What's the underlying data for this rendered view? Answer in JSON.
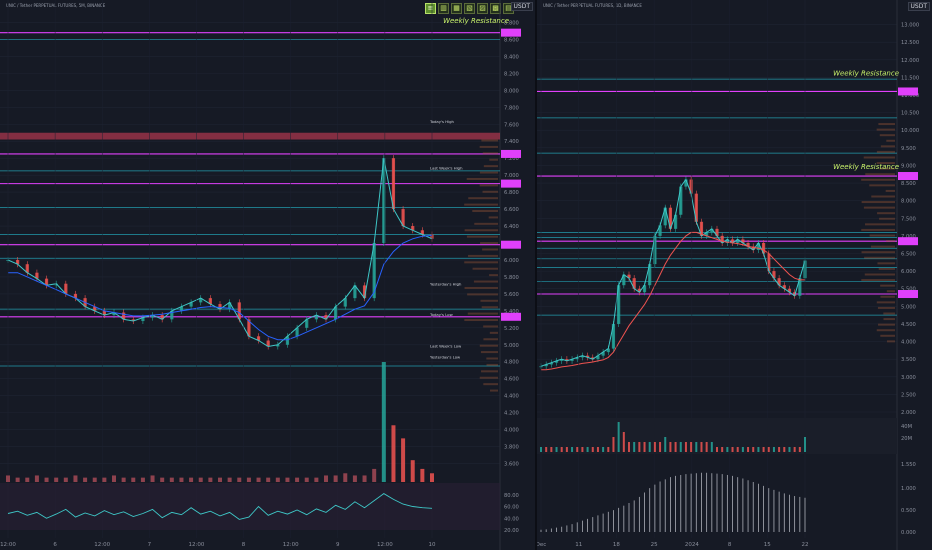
{
  "left_chart": {
    "header": "UNIC / Tether PERPETUAL FUTURES, 5M, BINANCE",
    "currency": "USDT",
    "toolbar": [
      "≡",
      "▥",
      "▦",
      "▧",
      "▨",
      "▩",
      "▤"
    ],
    "weekly_resistance": "Weekly Resistance",
    "annotations": [
      "Today's High",
      "Last Week's High",
      "Yesterday's High",
      "Today's Low",
      "Last Week's Low",
      "Yesterday's Low"
    ]
  },
  "right_chart": {
    "header": "UNIC / Tether PERPETUAL FUTURES, 1D, BINANCE",
    "currency": "USDT",
    "weekly_resistance_1": "Weekly Resistance",
    "weekly_resistance_2": "Weekly Resistance"
  },
  "chart_data": [
    {
      "type": "line",
      "title": "",
      "x_ticks": [
        "12:00",
        "6",
        "12:00",
        "7",
        "12:00",
        "8",
        "12:00",
        "9",
        "12:00",
        "10"
      ],
      "y_ticks": [
        8.8,
        8.6,
        8.4,
        8.2,
        8.0,
        7.8,
        7.6,
        7.4,
        7.2,
        7.0,
        6.8,
        6.6,
        6.4,
        6.2,
        6.0,
        5.8,
        5.6,
        5.4,
        5.2,
        5.0,
        4.8,
        4.6,
        4.4,
        4.2,
        4.0,
        3.8,
        3.6
      ],
      "ylim": [
        3.5,
        8.9
      ],
      "price_labels": [
        "8.800",
        "8.600",
        "8.400",
        "8.200",
        "8.000",
        "7.800",
        "7.600",
        "7.400",
        "7.200",
        "7.000",
        "6.800",
        "6.600",
        "6.400",
        "6.200",
        "6.000",
        "5.800",
        "5.600",
        "5.400",
        "5.200",
        "5.000",
        "4.800",
        "4.600",
        "4.400",
        "4.200",
        "4.000",
        "3.800",
        "3.600"
      ],
      "horizontal_levels": {
        "magenta": [
          8.68,
          7.25,
          6.9,
          6.18,
          5.33
        ],
        "teal": [
          8.6,
          7.05,
          6.62,
          6.3,
          6.02,
          5.42,
          4.75
        ],
        "red_band": [
          7.42,
          7.5
        ]
      },
      "series": [
        {
          "values": [
            6.0,
            5.95,
            5.85,
            5.78,
            5.7,
            5.72,
            5.6,
            5.55,
            5.45,
            5.4,
            5.35,
            5.38,
            5.3,
            5.28,
            5.32,
            5.35,
            5.3,
            5.4,
            5.45,
            5.5,
            5.55,
            5.48,
            5.42,
            5.5,
            5.3,
            5.1,
            5.05,
            4.98,
            5.0,
            5.1,
            5.2,
            5.3,
            5.35,
            5.3,
            5.45,
            5.55,
            5.7,
            5.55,
            6.2,
            7.2,
            6.6,
            6.4,
            6.35,
            6.3,
            6.25
          ]
        },
        {
          "values": [
            5.85,
            5.85,
            5.8,
            5.75,
            5.7,
            5.65,
            5.6,
            5.55,
            5.5,
            5.45,
            5.4,
            5.38,
            5.36,
            5.34,
            5.34,
            5.35,
            5.36,
            5.38,
            5.4,
            5.42,
            5.44,
            5.45,
            5.44,
            5.43,
            5.38,
            5.28,
            5.18,
            5.1,
            5.06,
            5.06,
            5.1,
            5.15,
            5.2,
            5.25,
            5.3,
            5.36,
            5.42,
            5.46,
            5.62,
            5.95,
            6.1,
            6.2,
            6.25,
            6.28,
            6.29
          ]
        }
      ],
      "volume": [
        3,
        2,
        2,
        3,
        2,
        2,
        2,
        3,
        2,
        2,
        2,
        3,
        2,
        2,
        2,
        3,
        2,
        2,
        2,
        2,
        2,
        2,
        2,
        2,
        2,
        2,
        2,
        2,
        2,
        2,
        2,
        2,
        2,
        3,
        3,
        4,
        3,
        3,
        6,
        55,
        26,
        20,
        10,
        6,
        4
      ],
      "oscillator_ticks": [
        "80.00",
        "60.00",
        "40.00",
        "20.00"
      ],
      "oscillator": [
        48,
        52,
        45,
        50,
        40,
        47,
        55,
        42,
        49,
        44,
        53,
        46,
        51,
        43,
        48,
        55,
        41,
        50,
        46,
        58,
        47,
        52,
        44,
        50,
        38,
        42,
        60,
        45,
        52,
        47,
        54,
        46,
        56,
        50,
        62,
        55,
        68,
        58,
        70,
        82,
        72,
        64,
        60,
        58,
        57
      ]
    },
    {
      "type": "line",
      "title": "",
      "x_ticks": [
        "Dec",
        "11",
        "18",
        "25",
        "2024",
        "8",
        "15",
        "22"
      ],
      "y_ticks": [
        13.0,
        12.5,
        12.0,
        11.5,
        11.0,
        10.5,
        10.0,
        9.5,
        9.0,
        8.5,
        8.0,
        7.5,
        7.0,
        6.5,
        6.0,
        5.5,
        5.0,
        4.5,
        4.0,
        3.5,
        3.0,
        2.5,
        2.0
      ],
      "price_labels": [
        "13.000",
        "12.500",
        "12.000",
        "11.500",
        "11.000",
        "10.500",
        "10.000",
        "9.500",
        "9.000",
        "8.500",
        "8.000",
        "7.500",
        "7.000",
        "6.500",
        "6.000",
        "5.500",
        "5.000",
        "4.500",
        "4.000",
        "3.500",
        "3.000",
        "2.500",
        "2.000"
      ],
      "ylim": [
        2.0,
        13.3
      ],
      "horizontal_levels": {
        "magenta": [
          11.1,
          8.7,
          6.85,
          5.35
        ],
        "teal": [
          11.45,
          10.35,
          9.35,
          7.1,
          6.65,
          6.35,
          6.1,
          5.7,
          4.75,
          6.95
        ]
      },
      "series": [
        {
          "values": [
            3.3,
            3.35,
            3.4,
            3.45,
            3.5,
            3.45,
            3.5,
            3.55,
            3.6,
            3.55,
            3.5,
            3.6,
            3.7,
            3.8,
            4.5,
            5.6,
            5.9,
            5.8,
            5.5,
            5.4,
            5.6,
            6.2,
            7.0,
            7.3,
            7.8,
            7.2,
            7.6,
            8.4,
            8.6,
            8.2,
            7.4,
            7.0,
            7.1,
            7.2,
            7.0,
            6.8,
            6.9,
            6.8,
            6.9,
            6.8,
            6.7,
            6.6,
            6.8,
            6.5,
            6.0,
            5.8,
            5.6,
            5.5,
            5.4,
            5.3,
            5.8,
            6.3
          ]
        },
        {
          "values": [
            3.2,
            3.2,
            3.22,
            3.25,
            3.28,
            3.3,
            3.32,
            3.35,
            3.38,
            3.4,
            3.42,
            3.45,
            3.48,
            3.55,
            3.7,
            3.95,
            4.2,
            4.45,
            4.65,
            4.85,
            5.05,
            5.3,
            5.6,
            5.9,
            6.2,
            6.45,
            6.65,
            6.85,
            7.0,
            7.1,
            7.1,
            7.05,
            7.0,
            6.95,
            6.9,
            6.85,
            6.82,
            6.8,
            6.78,
            6.75,
            6.7,
            6.68,
            6.65,
            6.6,
            6.5,
            6.35,
            6.2,
            6.05,
            5.9,
            5.8,
            5.75,
            5.75
          ]
        }
      ],
      "volume_ticks": [
        "40M",
        "20M"
      ],
      "volume": [
        1,
        1,
        1,
        1,
        1,
        1,
        1,
        1,
        1,
        1,
        1,
        1,
        1,
        1,
        3,
        6,
        4,
        2,
        2,
        2,
        2,
        2,
        2,
        2,
        3,
        2,
        2,
        2,
        2,
        2,
        2,
        2,
        2,
        2,
        1,
        1,
        1,
        1,
        1,
        1,
        1,
        1,
        1,
        1,
        1,
        1,
        1,
        1,
        1,
        1,
        1,
        3
      ],
      "indicator_ticks": [
        "1.550",
        "1.000",
        "0.500",
        "0.000"
      ],
      "indicator": [
        0.05,
        0.06,
        0.08,
        0.1,
        0.12,
        0.15,
        0.18,
        0.22,
        0.26,
        0.3,
        0.34,
        0.38,
        0.42,
        0.46,
        0.5,
        0.55,
        0.6,
        0.66,
        0.72,
        0.8,
        0.9,
        1.0,
        1.08,
        1.15,
        1.2,
        1.25,
        1.28,
        1.3,
        1.32,
        1.33,
        1.34,
        1.35,
        1.35,
        1.34,
        1.33,
        1.32,
        1.3,
        1.28,
        1.25,
        1.22,
        1.18,
        1.14,
        1.1,
        1.05,
        1.0,
        0.96,
        0.92,
        0.88,
        0.85,
        0.82,
        0.8,
        0.78
      ]
    }
  ],
  "colors": {
    "background": "#161a25",
    "magenta": "#e040fb",
    "teal": "#26c6da",
    "red_band": "#b2384e",
    "resistance_text": "#c8f26a",
    "price_line": "#3ec7c7",
    "volume_up": "#26a69a",
    "volume_down": "#ef5350"
  }
}
